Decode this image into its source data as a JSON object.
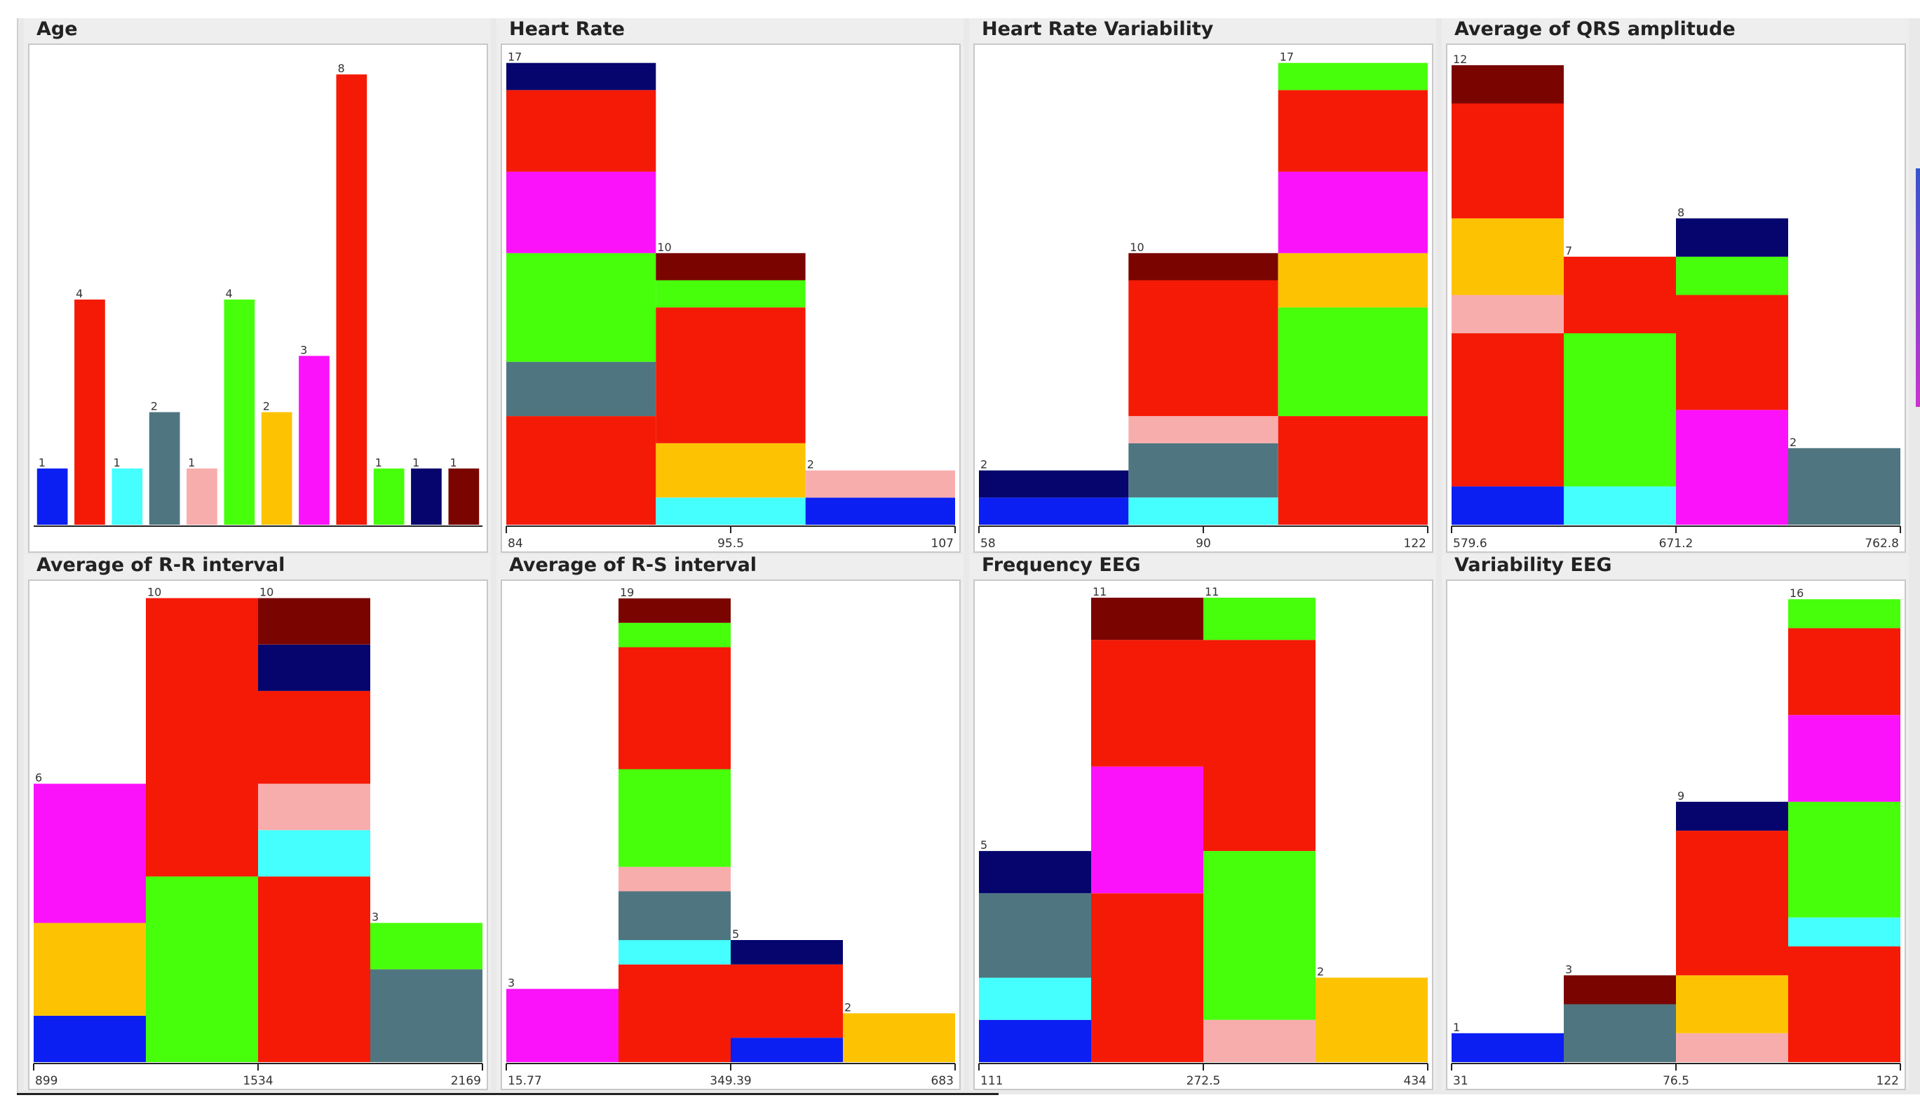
{
  "colors": {
    "blue": "#0b1ff2",
    "red": "#f51a05",
    "cyan": "#45ffff",
    "slate": "#4f7680",
    "pink": "#f8adad",
    "green": "#47ff0b",
    "orange": "#fdc302",
    "magenta": "#fb12fb",
    "navy": "#05056d",
    "maroon": "#7a0500"
  },
  "chart_data": [
    {
      "title": "Age",
      "type": "bar",
      "ymax": 8.3,
      "bars": [
        {
          "label": "1",
          "segments": [
            {
              "color": "blue",
              "value": 1
            }
          ]
        },
        {
          "label": "4",
          "segments": [
            {
              "color": "red",
              "value": 4
            }
          ]
        },
        {
          "label": "1",
          "segments": [
            {
              "color": "cyan",
              "value": 1
            }
          ]
        },
        {
          "label": "2",
          "segments": [
            {
              "color": "slate",
              "value": 2
            }
          ]
        },
        {
          "label": "1",
          "segments": [
            {
              "color": "pink",
              "value": 1
            }
          ]
        },
        {
          "label": "4",
          "segments": [
            {
              "color": "green",
              "value": 4
            }
          ]
        },
        {
          "label": "2",
          "segments": [
            {
              "color": "orange",
              "value": 2
            }
          ]
        },
        {
          "label": "3",
          "segments": [
            {
              "color": "magenta",
              "value": 3
            }
          ]
        },
        {
          "label": "8",
          "segments": [
            {
              "color": "red",
              "value": 8
            }
          ]
        },
        {
          "label": "1",
          "segments": [
            {
              "color": "green",
              "value": 1
            }
          ]
        },
        {
          "label": "1",
          "segments": [
            {
              "color": "navy",
              "value": 1
            }
          ]
        },
        {
          "label": "1",
          "segments": [
            {
              "color": "maroon",
              "value": 1
            }
          ]
        }
      ]
    },
    {
      "title": "Heart Rate",
      "type": "histogram",
      "ymax": 17.2,
      "ticks": [
        "84",
        "95.5",
        "107"
      ],
      "bars": [
        {
          "label": "17",
          "segments": [
            {
              "color": "red",
              "value": 4
            },
            {
              "color": "slate",
              "value": 2
            },
            {
              "color": "green",
              "value": 4
            },
            {
              "color": "magenta",
              "value": 3
            },
            {
              "color": "red",
              "value": 3
            },
            {
              "color": "navy",
              "value": 1
            }
          ]
        },
        {
          "label": "10",
          "segments": [
            {
              "color": "cyan",
              "value": 1
            },
            {
              "color": "orange",
              "value": 2
            },
            {
              "color": "red",
              "value": 5
            },
            {
              "color": "green",
              "value": 1
            },
            {
              "color": "maroon",
              "value": 1
            }
          ]
        },
        {
          "label": "2",
          "segments": [
            {
              "color": "blue",
              "value": 1
            },
            {
              "color": "pink",
              "value": 1
            }
          ]
        }
      ]
    },
    {
      "title": "Heart Rate Variability",
      "type": "histogram",
      "ymax": 17.2,
      "ticks": [
        "58",
        "90",
        "122"
      ],
      "bars": [
        {
          "label": "2",
          "segments": [
            {
              "color": "blue",
              "value": 1
            },
            {
              "color": "navy",
              "value": 1
            }
          ]
        },
        {
          "label": "10",
          "segments": [
            {
              "color": "cyan",
              "value": 1
            },
            {
              "color": "slate",
              "value": 2
            },
            {
              "color": "pink",
              "value": 1
            },
            {
              "color": "red",
              "value": 5
            },
            {
              "color": "maroon",
              "value": 1
            }
          ]
        },
        {
          "label": "17",
          "segments": [
            {
              "color": "red",
              "value": 4
            },
            {
              "color": "green",
              "value": 4
            },
            {
              "color": "orange",
              "value": 2
            },
            {
              "color": "magenta",
              "value": 3
            },
            {
              "color": "red",
              "value": 3
            },
            {
              "color": "green",
              "value": 1
            }
          ]
        }
      ]
    },
    {
      "title": "Average of QRS amplitude",
      "type": "histogram",
      "ymax": 12.2,
      "ticks": [
        "579.6",
        "671.2",
        "762.8"
      ],
      "bars": [
        {
          "label": "12",
          "segments": [
            {
              "color": "blue",
              "value": 1
            },
            {
              "color": "red",
              "value": 4
            },
            {
              "color": "pink",
              "value": 1
            },
            {
              "color": "orange",
              "value": 2
            },
            {
              "color": "red",
              "value": 3
            },
            {
              "color": "maroon",
              "value": 1
            }
          ]
        },
        {
          "label": "7",
          "segments": [
            {
              "color": "cyan",
              "value": 1
            },
            {
              "color": "green",
              "value": 4
            },
            {
              "color": "red",
              "value": 2
            }
          ]
        },
        {
          "label": "8",
          "segments": [
            {
              "color": "magenta",
              "value": 3
            },
            {
              "color": "red",
              "value": 3
            },
            {
              "color": "green",
              "value": 1
            },
            {
              "color": "navy",
              "value": 1
            }
          ]
        },
        {
          "label": "2",
          "segments": [
            {
              "color": "slate",
              "value": 2
            }
          ]
        }
      ]
    },
    {
      "title": "Average of R-R interval",
      "type": "histogram",
      "ymax": 10.1,
      "ticks": [
        "899",
        "1534",
        "2169"
      ],
      "bars": [
        {
          "label": "6",
          "segments": [
            {
              "color": "blue",
              "value": 1
            },
            {
              "color": "orange",
              "value": 2
            },
            {
              "color": "magenta",
              "value": 3
            }
          ]
        },
        {
          "label": "10",
          "segments": [
            {
              "color": "green",
              "value": 4
            },
            {
              "color": "red",
              "value": 6
            }
          ]
        },
        {
          "label": "10",
          "segments": [
            {
              "color": "red",
              "value": 4
            },
            {
              "color": "cyan",
              "value": 1
            },
            {
              "color": "pink",
              "value": 1
            },
            {
              "color": "red",
              "value": 2
            },
            {
              "color": "navy",
              "value": 1
            },
            {
              "color": "maroon",
              "value": 1
            }
          ]
        },
        {
          "label": "3",
          "segments": [
            {
              "color": "slate",
              "value": 2
            },
            {
              "color": "green",
              "value": 1
            }
          ]
        }
      ]
    },
    {
      "title": "Average of R-S interval",
      "type": "histogram",
      "ymax": 19.2,
      "ticks": [
        "15.77",
        "349.39",
        "683"
      ],
      "bars": [
        {
          "label": "3",
          "segments": [
            {
              "color": "magenta",
              "value": 3
            }
          ]
        },
        {
          "label": "19",
          "segments": [
            {
              "color": "red",
              "value": 4
            },
            {
              "color": "cyan",
              "value": 1
            },
            {
              "color": "slate",
              "value": 2
            },
            {
              "color": "pink",
              "value": 1
            },
            {
              "color": "green",
              "value": 4
            },
            {
              "color": "red",
              "value": 5
            },
            {
              "color": "green",
              "value": 1
            },
            {
              "color": "maroon",
              "value": 1
            }
          ]
        },
        {
          "label": "5",
          "segments": [
            {
              "color": "blue",
              "value": 1
            },
            {
              "color": "red",
              "value": 3
            },
            {
              "color": "navy",
              "value": 1
            }
          ]
        },
        {
          "label": "2",
          "segments": [
            {
              "color": "orange",
              "value": 2
            }
          ]
        }
      ]
    },
    {
      "title": "Frequency EEG",
      "type": "histogram",
      "ymax": 11.1,
      "ticks": [
        "111",
        "272.5",
        "434"
      ],
      "bars": [
        {
          "label": "5",
          "segments": [
            {
              "color": "blue",
              "value": 1
            },
            {
              "color": "cyan",
              "value": 1
            },
            {
              "color": "slate",
              "value": 2
            },
            {
              "color": "navy",
              "value": 1
            }
          ]
        },
        {
          "label": "11",
          "segments": [
            {
              "color": "red",
              "value": 4
            },
            {
              "color": "magenta",
              "value": 3
            },
            {
              "color": "red",
              "value": 3
            },
            {
              "color": "maroon",
              "value": 1
            }
          ]
        },
        {
          "label": "11",
          "segments": [
            {
              "color": "pink",
              "value": 1
            },
            {
              "color": "green",
              "value": 4
            },
            {
              "color": "red",
              "value": 5
            },
            {
              "color": "green",
              "value": 1
            }
          ]
        },
        {
          "label": "2",
          "segments": [
            {
              "color": "orange",
              "value": 2
            }
          ]
        }
      ]
    },
    {
      "title": "Variability EEG",
      "type": "histogram",
      "ymax": 16.2,
      "ticks": [
        "31",
        "76.5",
        "122"
      ],
      "bars": [
        {
          "label": "1",
          "segments": [
            {
              "color": "blue",
              "value": 1
            }
          ]
        },
        {
          "label": "3",
          "segments": [
            {
              "color": "slate",
              "value": 2
            },
            {
              "color": "maroon",
              "value": 1
            }
          ]
        },
        {
          "label": "9",
          "segments": [
            {
              "color": "pink",
              "value": 1
            },
            {
              "color": "orange",
              "value": 2
            },
            {
              "color": "red",
              "value": 5
            },
            {
              "color": "navy",
              "value": 1
            }
          ]
        },
        {
          "label": "16",
          "segments": [
            {
              "color": "red",
              "value": 4
            },
            {
              "color": "cyan",
              "value": 1
            },
            {
              "color": "green",
              "value": 4
            },
            {
              "color": "magenta",
              "value": 3
            },
            {
              "color": "red",
              "value": 3
            },
            {
              "color": "green",
              "value": 1
            }
          ]
        }
      ]
    }
  ]
}
